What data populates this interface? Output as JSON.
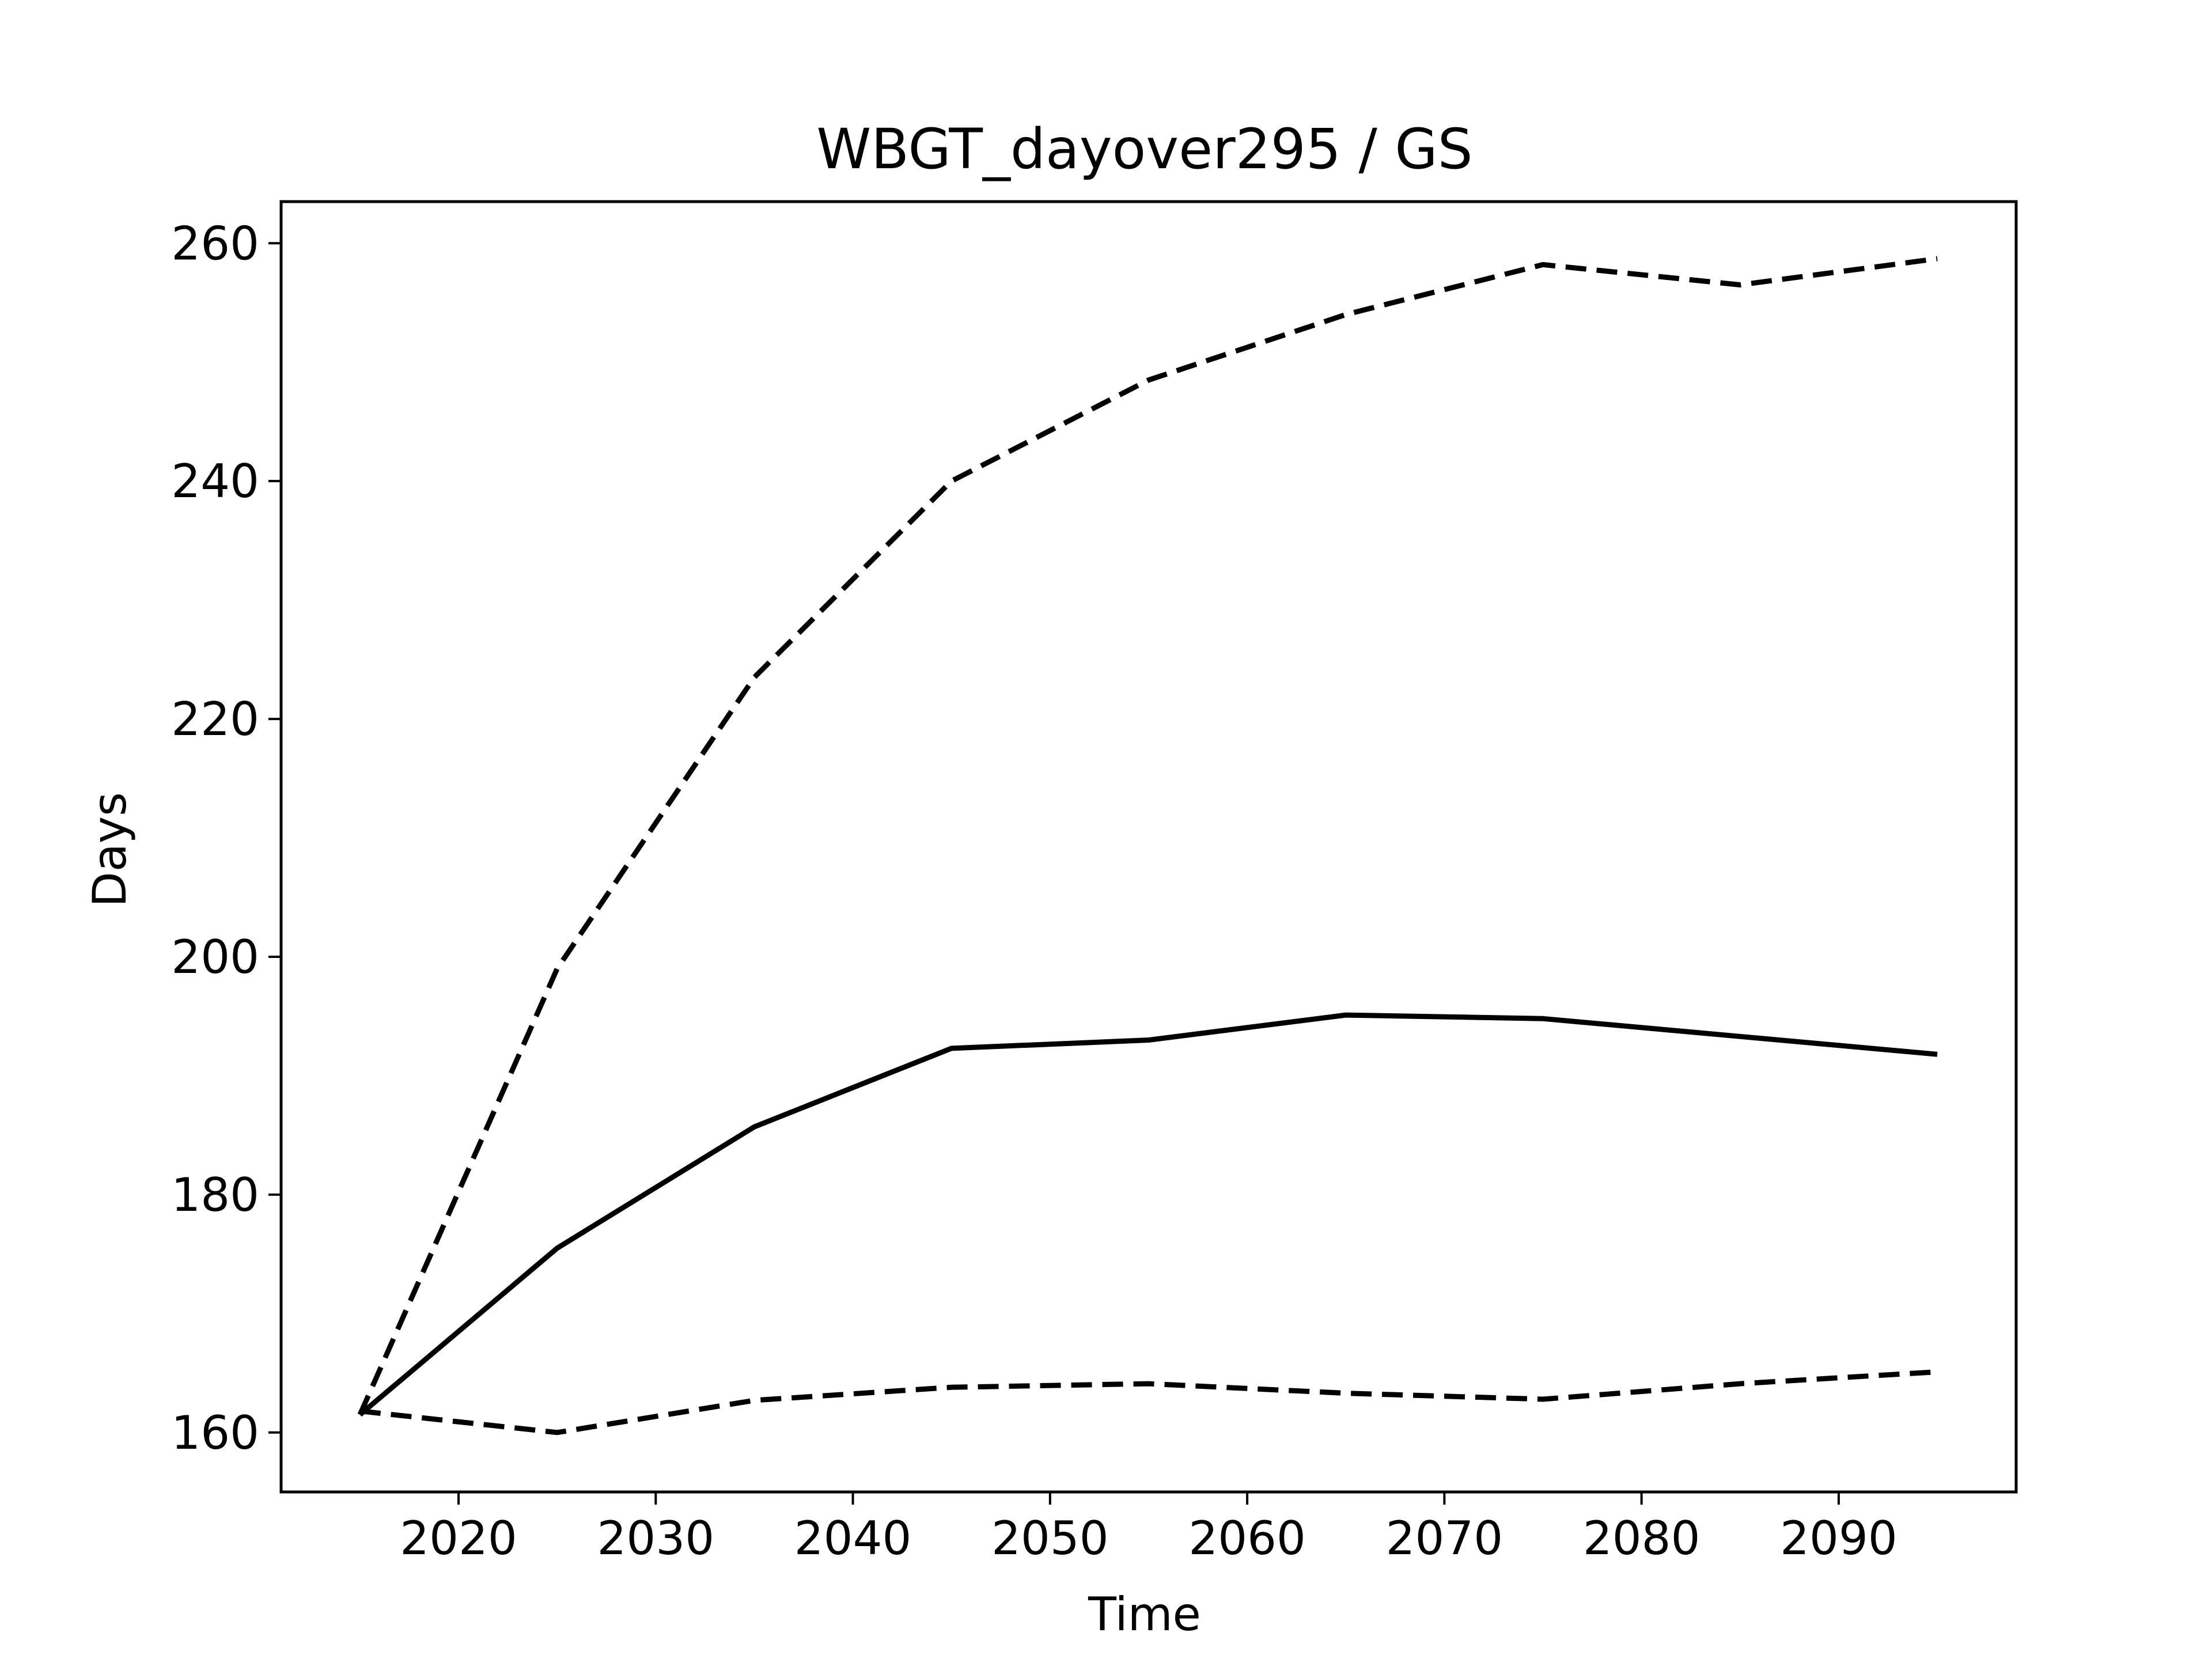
{
  "chart_data": {
    "type": "line",
    "title": "WBGT_dayover295 / GS",
    "xlabel": "Time",
    "ylabel": "Days",
    "x": [
      2015,
      2025,
      2035,
      2045,
      2055,
      2065,
      2075,
      2085,
      2095
    ],
    "series": [
      {
        "style": "dashed",
        "values": [
          161.5,
          199.0,
          223.5,
          240.0,
          248.5,
          254.0,
          258.2,
          256.5,
          258.7
        ]
      },
      {
        "style": "solid",
        "values": [
          161.5,
          175.5,
          185.7,
          192.3,
          193.0,
          195.1,
          194.8,
          193.3,
          191.8
        ]
      },
      {
        "style": "dashed",
        "values": [
          161.8,
          160.0,
          162.7,
          163.8,
          164.1,
          163.3,
          162.8,
          164.1,
          165.1
        ]
      }
    ],
    "xlim": [
      2011,
      2099
    ],
    "ylim": [
      155,
      263.5
    ],
    "xticks": [
      2020,
      2030,
      2040,
      2050,
      2060,
      2070,
      2080,
      2090
    ],
    "yticks": [
      160,
      180,
      200,
      220,
      240,
      260
    ],
    "grid": false
  }
}
